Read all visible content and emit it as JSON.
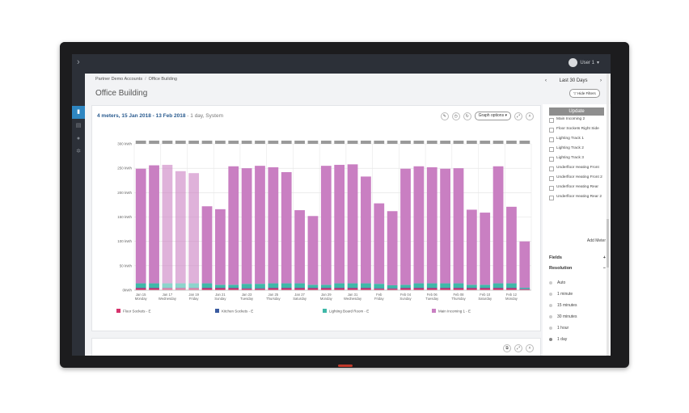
{
  "header": {
    "user": "User 1"
  },
  "breadcrumb": [
    "Partner Demo Accounts",
    "Office Building"
  ],
  "page_title": "Office Building",
  "period": {
    "label": "Last 30 Days",
    "prev": "‹",
    "next": "›"
  },
  "hide_filters": "Hide Filters",
  "card": {
    "title_bold": "4 meters, 15 Jan 2018 - 13 Feb 2018",
    "title_sub": " - 1 day, System",
    "graph_options": "Graph options"
  },
  "chart_data": {
    "type": "bar",
    "stacked": true,
    "ylim": [
      0,
      300
    ],
    "yticks": [
      "0kWh",
      "50 kWh",
      "100 kWh",
      "150 kWh",
      "200 kWh",
      "250 kWh",
      "300 kWh"
    ],
    "xlabels": [
      {
        "date": "Jan 15",
        "day": "Monday"
      },
      {
        "date": "Jan 17",
        "day": "Wednesday"
      },
      {
        "date": "Jan 19",
        "day": "Friday"
      },
      {
        "date": "Jan 21",
        "day": "Sunday"
      },
      {
        "date": "Jan 23",
        "day": "Tuesday"
      },
      {
        "date": "Jan 25",
        "day": "Thursday"
      },
      {
        "date": "Jan 27",
        "day": "Saturday"
      },
      {
        "date": "Jan 29",
        "day": "Monday"
      },
      {
        "date": "Jan 31",
        "day": "Wednesday"
      },
      {
        "date": "Feb",
        "day": "Friday"
      },
      {
        "date": "Feb 04",
        "day": "Sunday"
      },
      {
        "date": "Feb 06",
        "day": "Tuesday"
      },
      {
        "date": "Feb 08",
        "day": "Thursday"
      },
      {
        "date": "Feb 10",
        "day": "Saturday"
      },
      {
        "date": "Feb 12",
        "day": "Monday"
      }
    ],
    "series": [
      {
        "name": "Floor Sockets - E",
        "color": "#d6336c",
        "values": [
          4,
          4,
          4,
          4,
          4,
          4,
          4,
          4,
          3,
          3,
          4,
          4,
          4,
          4,
          4,
          4,
          4,
          4,
          3,
          3,
          4,
          4,
          4,
          4,
          4,
          4,
          4,
          4,
          4,
          2
        ]
      },
      {
        "name": "Kitchen Sockets - E",
        "color": "#3a5ba0",
        "values": [
          1,
          1,
          1,
          1,
          1,
          1,
          1,
          1,
          1,
          1,
          1,
          1,
          1,
          1,
          1,
          1,
          1,
          1,
          1,
          1,
          1,
          1,
          1,
          1,
          1,
          1,
          1,
          1,
          1,
          1
        ]
      },
      {
        "name": "Lighting Board Room - E",
        "color": "#3fb8a8",
        "values": [
          9,
          9,
          9,
          9,
          9,
          9,
          6,
          6,
          9,
          9,
          9,
          9,
          9,
          6,
          6,
          9,
          9,
          9,
          9,
          6,
          6,
          9,
          9,
          9,
          9,
          6,
          6,
          9,
          9,
          2
        ]
      },
      {
        "name": "Main Incoming 1 - E",
        "color": "#c97fc2",
        "values": [
          235,
          242,
          243,
          230,
          226,
          158,
          155,
          243,
          237,
          242,
          238,
          228,
          150,
          141,
          244,
          243,
          244,
          219,
          165,
          152,
          238,
          240,
          238,
          235,
          236,
          154,
          148,
          240,
          157,
          95
        ]
      }
    ],
    "legend_position": "bottom"
  },
  "meters": [
    "Main Incoming 2",
    "Floor Sockets Right Side",
    "Lighting Track 1",
    "Lighting Track 2",
    "Lighting Track 3",
    "Underfloor Heating Front",
    "Underfloor Heating Front 2",
    "Underfloor Heating Rear",
    "Underfloor Heating Rear 2"
  ],
  "panel": {
    "update": "Update",
    "add_meter": "Add Meter",
    "fields": "Fields",
    "resolution": "Resolution",
    "resolution_options": [
      "Auto",
      "1 minute",
      "15 minutes",
      "30 minutes",
      "1 hour",
      "1 day"
    ],
    "selected_resolution": "1 day"
  },
  "colors": {
    "accent": "#2e86c1",
    "topbar": "#2c3038"
  }
}
